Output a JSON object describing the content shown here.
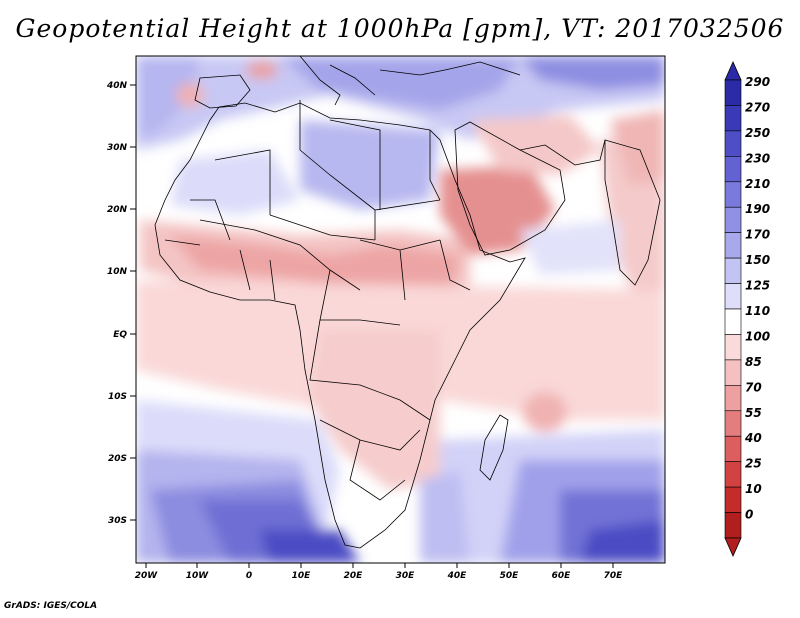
{
  "title": "Geopotential Height at 1000hPa [gpm], VT: 2017032506",
  "credit": "GrADS: IGES/COLA",
  "lat_labels": [
    "40N",
    "30N",
    "20N",
    "10N",
    "EQ",
    "10S",
    "20S",
    "30S"
  ],
  "lon_labels": [
    "20W",
    "10W",
    "0",
    "10E",
    "20E",
    "30E",
    "40E",
    "50E",
    "60E",
    "70E"
  ],
  "colorbar": {
    "levels": [
      "290",
      "270",
      "250",
      "230",
      "210",
      "190",
      "170",
      "150",
      "125",
      "110",
      "100",
      "85",
      "70",
      "55",
      "40",
      "25",
      "10",
      "0"
    ],
    "colors": [
      "#2b2ba8",
      "#3a3ab8",
      "#4e4ec6",
      "#6262d2",
      "#7a7adc",
      "#9090e4",
      "#a8a8ec",
      "#c4c4f4",
      "#dedefa",
      "#ffffff",
      "#fadada",
      "#f5c0c0",
      "#eea0a0",
      "#e47e7e",
      "#dc5e5e",
      "#d24242",
      "#c42c2c",
      "#b01e1e"
    ]
  },
  "colors": {
    "land_outline": "#000000",
    "high_blue": "#5656c8",
    "mid_blue": "#a6a6ec",
    "light_blue": "#d8d8f8",
    "light_pink": "#f8dcdc",
    "pink": "#f0b4b4",
    "red": "#e28888"
  }
}
